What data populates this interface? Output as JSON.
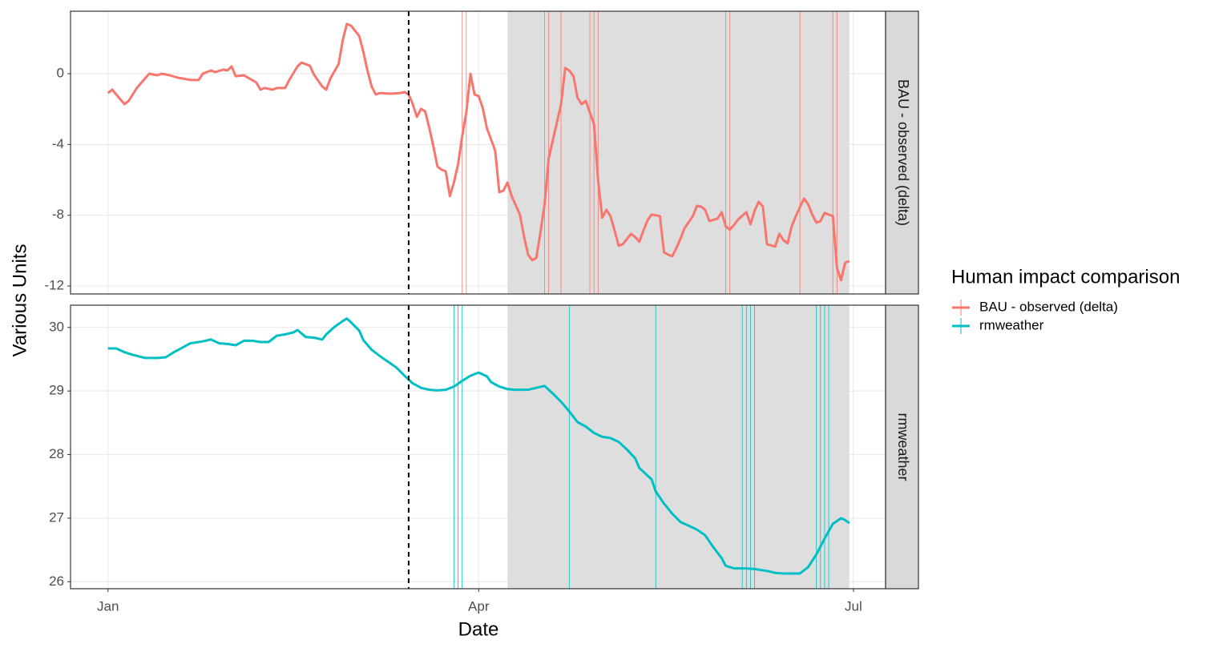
{
  "chart_data": [
    {
      "type": "line",
      "x": [
        0,
        1,
        3,
        4,
        5,
        7,
        9,
        10,
        12,
        13,
        15,
        17,
        18,
        20,
        22,
        23,
        25,
        26,
        28,
        29,
        30,
        31,
        33,
        34,
        36,
        37,
        38,
        40,
        41,
        43,
        44,
        46,
        47,
        49,
        50,
        52,
        53,
        54,
        56,
        57,
        58,
        59,
        61,
        62,
        63,
        64,
        65,
        66,
        68,
        69,
        71,
        72,
        73,
        74,
        75,
        76,
        77,
        78,
        79,
        80,
        81,
        82,
        83,
        84,
        85,
        86,
        87,
        88,
        89,
        90,
        91,
        92,
        94,
        95,
        96,
        97,
        98,
        100,
        101,
        102,
        103,
        104,
        105,
        106,
        107,
        108,
        110,
        111,
        112,
        113,
        114,
        115,
        116,
        118,
        119,
        120,
        121,
        122,
        123,
        124,
        125,
        127,
        128,
        129,
        130,
        131,
        132,
        134,
        135,
        136,
        137,
        138,
        139,
        140,
        142,
        143,
        144,
        145,
        146,
        148,
        149,
        150,
        151,
        152,
        153,
        155,
        156,
        157,
        158,
        159,
        160,
        162,
        163,
        164,
        165,
        166,
        167,
        169,
        170,
        171,
        172,
        173,
        174,
        176,
        177,
        178,
        179,
        180
      ],
      "series": [
        {
          "name": "BAU - observed (delta)",
          "color": "#f8766d",
          "values": [
            -1.1,
            -0.9,
            -1.45,
            -1.72,
            -1.54,
            -0.81,
            -0.27,
            0,
            -0.09,
            0,
            -0.09,
            -0.23,
            -0.27,
            -0.36,
            -0.36,
            0,
            0.18,
            0.09,
            0.23,
            0.18,
            0.41,
            -0.14,
            -0.09,
            -0.23,
            -0.5,
            -0.9,
            -0.81,
            -0.9,
            -0.81,
            -0.81,
            -0.36,
            0.41,
            0.63,
            0.45,
            -0.05,
            -0.72,
            -0.9,
            -0.27,
            0.54,
            1.9,
            2.81,
            2.71,
            2.13,
            1.22,
            0.18,
            -0.72,
            -1.18,
            -1.09,
            -1.13,
            -1.13,
            -1.09,
            -1.04,
            -1.18,
            -1.72,
            -2.44,
            -1.99,
            -2.13,
            -3.06,
            -4.1,
            -5.25,
            -5.43,
            -5.52,
            -6.92,
            -6.15,
            -5.11,
            -3.53,
            -2.17,
            0,
            -1.18,
            -1.27,
            -1.95,
            -3.08,
            -4.34,
            -6.7,
            -6.61,
            -6.15,
            -6.92,
            -7.96,
            -9.19,
            -10.23,
            -10.54,
            -10.41,
            -8.96,
            -7.38,
            -4.8,
            -3.76,
            -1.72,
            0.32,
            0.18,
            -0.14,
            -1.36,
            -1.72,
            -1.54,
            -2.85,
            -6.02,
            -8.14,
            -7.69,
            -8.05,
            -8.87,
            -9.73,
            -9.64,
            -9.05,
            -9.23,
            -9.5,
            -8.87,
            -8.28,
            -7.96,
            -8.05,
            -10.09,
            -10.23,
            -10.32,
            -9.86,
            -9.32,
            -8.73,
            -8.05,
            -7.47,
            -7.51,
            -7.69,
            -8.33,
            -8.19,
            -7.83,
            -8.64,
            -8.82,
            -8.55,
            -8.24,
            -7.83,
            -8.51,
            -7.74,
            -7.24,
            -7.51,
            -9.64,
            -9.77,
            -9.05,
            -9.41,
            -9.59,
            -8.64,
            -8.05,
            -7.06,
            -7.38,
            -7.96,
            -8.42,
            -8.33,
            -7.87,
            -8.05,
            -11.0,
            -11.67,
            -10.68,
            -10.59
          ]
        }
      ],
      "ylim": [
        -12.45,
        3.53
      ],
      "yticks": [
        -12,
        -8,
        -4,
        0
      ],
      "vlines": [
        86,
        87,
        106,
        107,
        110,
        117,
        118,
        119,
        150,
        151,
        168,
        176,
        177
      ],
      "intervention": 73,
      "shaded": [
        97,
        180
      ],
      "grid": true
    },
    {
      "type": "line",
      "x": [
        0,
        2,
        4,
        6,
        9,
        12,
        14,
        16,
        18,
        20,
        23,
        25,
        27,
        29,
        31,
        33,
        35,
        37,
        39,
        41,
        43,
        45,
        46,
        48,
        50,
        52,
        53,
        55,
        57,
        58,
        59,
        61,
        62,
        64,
        66,
        68,
        70,
        72,
        74,
        76,
        78,
        80,
        82,
        84,
        86,
        88,
        90,
        92,
        93,
        95,
        97,
        99,
        102,
        104,
        106,
        108,
        110,
        112,
        114,
        116,
        118,
        120,
        122,
        124,
        126,
        128,
        129,
        132,
        133,
        135,
        137,
        139,
        141,
        143,
        145,
        147,
        149,
        150,
        152,
        155,
        157,
        160,
        162,
        164,
        166,
        168,
        170,
        172,
        174,
        176,
        178,
        179,
        180
      ],
      "series": [
        {
          "name": "rmweather",
          "color": "#00bfc4",
          "values": [
            29.67,
            29.67,
            29.61,
            29.57,
            29.52,
            29.52,
            29.53,
            29.61,
            29.68,
            29.75,
            29.78,
            29.81,
            29.75,
            29.74,
            29.72,
            29.79,
            29.79,
            29.77,
            29.77,
            29.87,
            29.89,
            29.92,
            29.96,
            29.85,
            29.84,
            29.81,
            29.89,
            30.01,
            30.1,
            30.14,
            30.08,
            29.95,
            29.8,
            29.65,
            29.55,
            29.46,
            29.37,
            29.24,
            29.12,
            29.05,
            29.02,
            29.01,
            29.02,
            29.07,
            29.16,
            29.24,
            29.29,
            29.23,
            29.14,
            29.07,
            29.03,
            29.02,
            29.02,
            29.05,
            29.08,
            28.96,
            28.83,
            28.68,
            28.51,
            28.44,
            28.34,
            28.28,
            28.26,
            28.2,
            28.08,
            27.94,
            27.79,
            27.61,
            27.42,
            27.23,
            27.07,
            26.94,
            26.88,
            26.82,
            26.73,
            26.54,
            26.37,
            26.25,
            26.21,
            26.21,
            26.2,
            26.17,
            26.14,
            26.13,
            26.13,
            26.13,
            26.23,
            26.43,
            26.68,
            26.91,
            27.0,
            26.97,
            26.92
          ]
        }
      ],
      "ylim": [
        25.89,
        30.35
      ],
      "yticks": [
        26,
        27,
        28,
        29,
        30
      ],
      "xlim": [
        -9.1,
        188.8
      ],
      "xticks": [
        {
          "value": 0,
          "label": "Jan"
        },
        {
          "value": 90,
          "label": "Apr"
        },
        {
          "value": 181,
          "label": "Jul"
        }
      ],
      "xlabel": "Date",
      "vlines": [
        84,
        85,
        86,
        112,
        133,
        154,
        155,
        156,
        157,
        172,
        173,
        174,
        175
      ],
      "intervention": 73,
      "shaded": [
        97,
        180
      ],
      "grid": true
    }
  ],
  "ylabel": "Various Units",
  "legend": {
    "title": "Human impact comparison"
  }
}
